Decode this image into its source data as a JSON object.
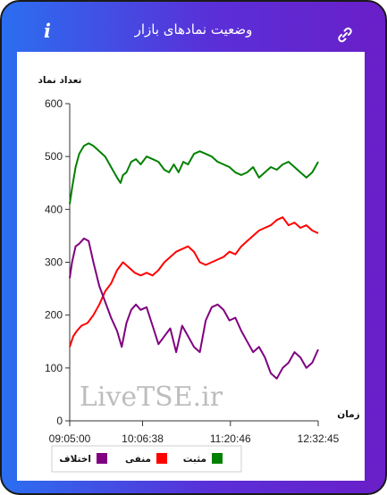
{
  "header": {
    "title": "وضعیت نمادهای بازار",
    "info_icon": "info-icon",
    "link_icon": "link-icon"
  },
  "chart_data": {
    "type": "line",
    "ylabel": "تعداد نماد",
    "xlabel": "زمان",
    "ylim": [
      0,
      600
    ],
    "yticks": [
      "0",
      "100",
      "200",
      "300",
      "400",
      "500",
      "600"
    ],
    "xticks": [
      "09:05:00",
      "10:06:38",
      "11:20:46",
      "12:32:45"
    ],
    "xrange_minutes": [
      0,
      210
    ],
    "watermark": "LiveTSE.ir",
    "legend_placement": "bottom",
    "series": [
      {
        "name": "مثبت",
        "color": "#008000",
        "x": [
          0,
          2,
          5,
          8,
          12,
          16,
          20,
          25,
          30,
          35,
          40,
          43,
          45,
          48,
          52,
          56,
          60,
          65,
          70,
          75,
          80,
          84,
          88,
          92,
          96,
          100,
          105,
          110,
          115,
          120,
          125,
          130,
          135,
          140,
          145,
          150,
          155,
          160,
          165,
          170,
          175,
          180,
          185,
          190,
          195,
          200,
          205,
          210
        ],
        "values": [
          410,
          440,
          480,
          505,
          520,
          525,
          520,
          510,
          500,
          480,
          460,
          450,
          465,
          470,
          490,
          495,
          485,
          500,
          495,
          490,
          475,
          470,
          485,
          470,
          490,
          485,
          505,
          510,
          505,
          500,
          490,
          485,
          480,
          470,
          465,
          470,
          480,
          460,
          470,
          480,
          475,
          485,
          490,
          480,
          470,
          460,
          470,
          490
        ]
      },
      {
        "name": "منفی",
        "color": "#ff0000",
        "x": [
          0,
          3,
          6,
          10,
          15,
          20,
          25,
          30,
          35,
          40,
          45,
          50,
          55,
          60,
          65,
          70,
          75,
          80,
          85,
          90,
          95,
          100,
          105,
          110,
          115,
          120,
          125,
          130,
          135,
          140,
          145,
          150,
          155,
          160,
          165,
          170,
          175,
          180,
          185,
          190,
          195,
          200,
          205,
          210
        ],
        "values": [
          140,
          160,
          170,
          180,
          185,
          200,
          220,
          245,
          260,
          285,
          300,
          290,
          280,
          275,
          280,
          275,
          285,
          300,
          310,
          320,
          325,
          330,
          320,
          300,
          295,
          300,
          305,
          310,
          320,
          315,
          330,
          340,
          350,
          360,
          365,
          370,
          380,
          385,
          370,
          375,
          365,
          370,
          360,
          355
        ]
      },
      {
        "name": "اختلاف",
        "color": "#800080",
        "x": [
          0,
          2,
          5,
          8,
          12,
          16,
          20,
          25,
          30,
          35,
          40,
          44,
          48,
          52,
          56,
          60,
          65,
          70,
          75,
          80,
          85,
          90,
          95,
          100,
          105,
          110,
          115,
          120,
          125,
          130,
          135,
          140,
          145,
          150,
          155,
          160,
          165,
          170,
          175,
          180,
          185,
          190,
          195,
          200,
          205,
          210
        ],
        "values": [
          270,
          300,
          330,
          335,
          345,
          340,
          300,
          255,
          225,
          195,
          170,
          140,
          185,
          210,
          220,
          210,
          215,
          180,
          145,
          160,
          175,
          130,
          180,
          160,
          140,
          130,
          190,
          215,
          220,
          210,
          190,
          195,
          170,
          150,
          130,
          140,
          120,
          90,
          80,
          100,
          110,
          130,
          120,
          100,
          110,
          135
        ]
      }
    ]
  }
}
